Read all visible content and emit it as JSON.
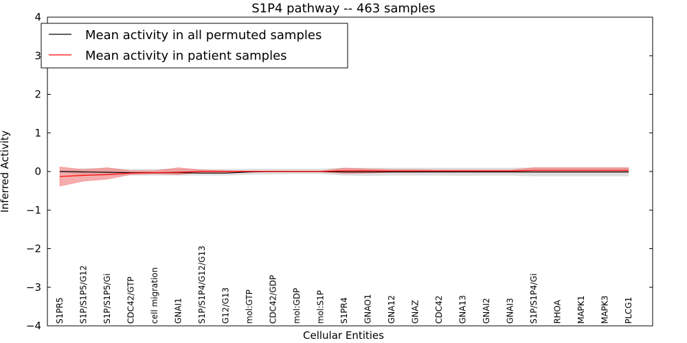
{
  "chart_data": {
    "type": "line",
    "title": "S1P4 pathway -- 463 samples",
    "xlabel": "Cellular Entities",
    "ylabel": "Inferred Activity",
    "ylim": [
      -4,
      4
    ],
    "yticks": [
      4,
      3,
      2,
      1,
      0,
      -1,
      -2,
      -3,
      -4
    ],
    "ytick_labels": [
      "4",
      "3",
      "2",
      "1",
      "0",
      "−1",
      "−2",
      "−3",
      "−4"
    ],
    "grid": false,
    "legend_position": "top-left",
    "categories": [
      "S1PR5",
      "S1P/S1P5/G12",
      "S1P/S1P5/Gi",
      "CDC42/GTP",
      "cell migration",
      "GNAI1",
      "S1P/S1P4/G12/G13",
      "G12/G13",
      "mol:GTP",
      "CDC42/GDP",
      "mol:GDP",
      "mol:S1P",
      "S1PR4",
      "GNAO1",
      "GNA12",
      "GNAZ",
      "CDC42",
      "GNA13",
      "GNAI2",
      "GNAI3",
      "S1P/S1P4/Gi",
      "RHOA",
      "MAPK1",
      "MAPK3",
      "PLCG1"
    ],
    "series": [
      {
        "name": "Mean activity in all permuted samples",
        "color": "#000000",
        "band_color": "#c0c0c0",
        "values": [
          0.0,
          -0.01,
          -0.02,
          -0.03,
          -0.03,
          -0.03,
          -0.04,
          -0.04,
          -0.01,
          0.0,
          0.0,
          0.0,
          -0.01,
          -0.01,
          -0.01,
          -0.01,
          -0.01,
          -0.01,
          -0.01,
          -0.01,
          -0.01,
          -0.01,
          -0.01,
          -0.01,
          -0.01
        ],
        "lower": [
          -0.02,
          -0.1,
          -0.1,
          -0.1,
          -0.1,
          -0.1,
          -0.1,
          -0.1,
          -0.08,
          -0.07,
          -0.06,
          -0.06,
          -0.1,
          -0.11,
          -0.1,
          -0.1,
          -0.1,
          -0.11,
          -0.1,
          -0.1,
          -0.12,
          -0.12,
          -0.12,
          -0.12,
          -0.12
        ],
        "upper": [
          0.02,
          0.08,
          0.08,
          0.06,
          0.06,
          0.07,
          0.06,
          0.06,
          0.07,
          0.07,
          0.07,
          0.07,
          0.09,
          0.09,
          0.09,
          0.09,
          0.09,
          0.09,
          0.09,
          0.09,
          0.1,
          0.1,
          0.1,
          0.1,
          0.1
        ]
      },
      {
        "name": "Mean activity in patient samples",
        "color": "#ff0000",
        "band_color": "#f08080",
        "values": [
          -0.13,
          -0.1,
          -0.08,
          -0.04,
          -0.03,
          -0.02,
          0.0,
          0.0,
          0.0,
          0.0,
          0.0,
          0.0,
          0.02,
          0.02,
          0.01,
          0.01,
          0.01,
          0.01,
          0.01,
          0.01,
          0.03,
          0.03,
          0.03,
          0.03,
          0.03
        ],
        "lower": [
          -0.38,
          -0.25,
          -0.2,
          -0.08,
          -0.06,
          -0.08,
          -0.02,
          -0.02,
          -0.01,
          -0.01,
          -0.01,
          -0.01,
          -0.05,
          -0.04,
          -0.02,
          -0.02,
          -0.01,
          -0.01,
          -0.01,
          -0.01,
          -0.02,
          -0.02,
          -0.02,
          -0.02,
          -0.02
        ],
        "upper": [
          0.12,
          0.05,
          0.1,
          0.02,
          0.02,
          0.1,
          0.04,
          0.02,
          0.01,
          0.01,
          0.01,
          0.01,
          0.09,
          0.07,
          0.05,
          0.05,
          0.04,
          0.04,
          0.04,
          0.04,
          0.1,
          0.1,
          0.1,
          0.1,
          0.1
        ]
      }
    ]
  }
}
